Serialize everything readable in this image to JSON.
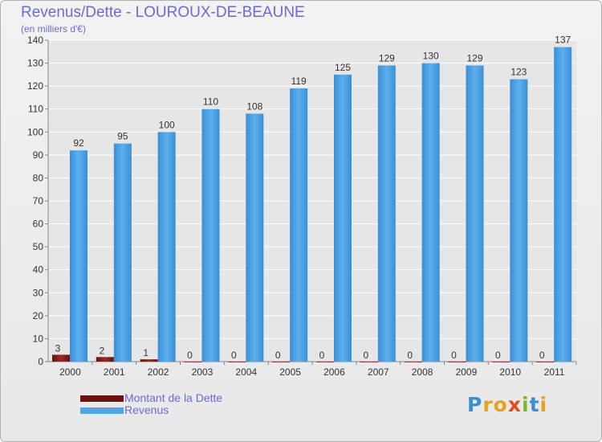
{
  "chart_data": {
    "type": "bar",
    "title": "Revenus/Dette - LOUROUX-DE-BEAUNE",
    "subtitle": "(en milliers d'€)",
    "categories": [
      "2000",
      "2001",
      "2002",
      "2003",
      "2004",
      "2005",
      "2006",
      "2007",
      "2008",
      "2009",
      "2010",
      "2011"
    ],
    "series": [
      {
        "name": "Montant de la Dette",
        "values": [
          3,
          2,
          1,
          0,
          0,
          0,
          0,
          0,
          0,
          0,
          0,
          0
        ],
        "color": "#8b1a1a"
      },
      {
        "name": "Revenus",
        "values": [
          92,
          95,
          100,
          110,
          108,
          119,
          125,
          129,
          130,
          129,
          123,
          137
        ],
        "color": "#4da6e8"
      }
    ],
    "yticks": [
      0,
      10,
      20,
      30,
      40,
      50,
      60,
      70,
      80,
      90,
      100,
      110,
      120,
      130,
      140
    ],
    "ylim": [
      0,
      140
    ],
    "grid": true,
    "legend": "bottom-left"
  },
  "brand": {
    "letters": [
      "P",
      "r",
      "o",
      "x",
      "i",
      "t",
      "i"
    ],
    "colors": [
      "#3a8fd0",
      "#e8a020",
      "#e8a020",
      "#e84a20",
      "#7ab82a",
      "#3a8fd0",
      "#e8a020"
    ]
  }
}
